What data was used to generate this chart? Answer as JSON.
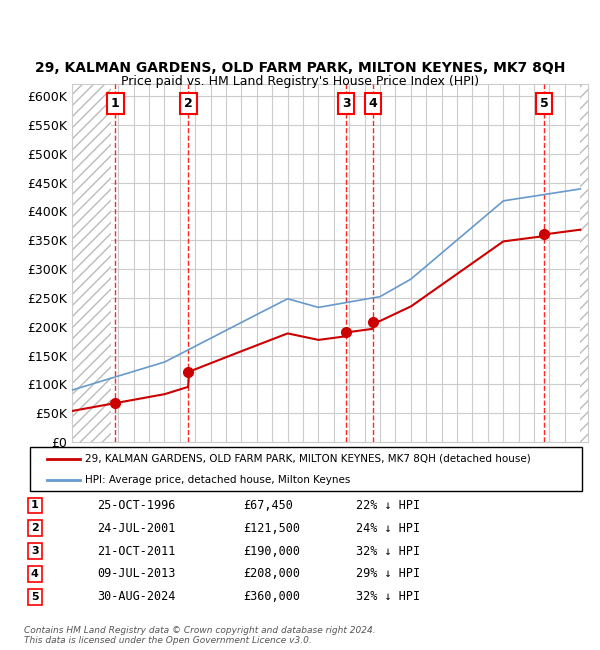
{
  "title_line1": "29, KALMAN GARDENS, OLD FARM PARK, MILTON KEYNES, MK7 8QH",
  "title_line2": "Price paid vs. HM Land Registry's House Price Index (HPI)",
  "ylim": [
    0,
    620000
  ],
  "yticks": [
    0,
    50000,
    100000,
    150000,
    200000,
    250000,
    300000,
    350000,
    400000,
    450000,
    500000,
    550000,
    600000
  ],
  "ytick_labels": [
    "£0",
    "£50K",
    "£100K",
    "£150K",
    "£200K",
    "£250K",
    "£300K",
    "£350K",
    "£400K",
    "£450K",
    "£500K",
    "£550K",
    "£600K"
  ],
  "xlim_start": 1994.0,
  "xlim_end": 2027.5,
  "sale_dates": [
    1996.82,
    2001.56,
    2011.81,
    2013.52,
    2024.66
  ],
  "sale_prices": [
    67450,
    121500,
    190000,
    208000,
    360000
  ],
  "sale_labels": [
    "1",
    "2",
    "3",
    "4",
    "5"
  ],
  "property_color": "#cc0000",
  "hpi_color": "#6699cc",
  "legend_property": "29, KALMAN GARDENS, OLD FARM PARK, MILTON KEYNES, MK7 8QH (detached house)",
  "legend_hpi": "HPI: Average price, detached house, Milton Keynes",
  "table_rows": [
    [
      "1",
      "25-OCT-1996",
      "£67,450",
      "22% ↓ HPI"
    ],
    [
      "2",
      "24-JUL-2001",
      "£121,500",
      "24% ↓ HPI"
    ],
    [
      "3",
      "21-OCT-2011",
      "£190,000",
      "32% ↓ HPI"
    ],
    [
      "4",
      "09-JUL-2013",
      "£208,000",
      "29% ↓ HPI"
    ],
    [
      "5",
      "30-AUG-2024",
      "£360,000",
      "32% ↓ HPI"
    ]
  ],
  "footer": "Contains HM Land Registry data © Crown copyright and database right 2024.\nThis data is licensed under the Open Government Licence v3.0.",
  "grid_color": "#cccccc",
  "hatch_end_year": 1996.5,
  "hatch_start_year2": 2027.0
}
